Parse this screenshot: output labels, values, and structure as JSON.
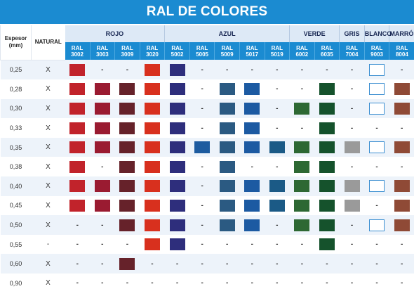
{
  "title": "RAL DE COLORES",
  "headers": {
    "espesor": "Espesor (mm)",
    "natural": "NATURAL",
    "groups": [
      {
        "name": "ROJO",
        "span": 4
      },
      {
        "name": "AZUL",
        "span": 5
      },
      {
        "name": "VERDE",
        "span": 2
      },
      {
        "name": "GRIS",
        "span": 1
      },
      {
        "name": "BLANCO",
        "span": 1
      },
      {
        "name": "MARRÓN",
        "span": 1
      }
    ],
    "ral_label": "RAL",
    "codes": [
      "3002",
      "3003",
      "3009",
      "3020",
      "5002",
      "5005",
      "5009",
      "5017",
      "5019",
      "6002",
      "6035",
      "7004",
      "9003",
      "8004"
    ]
  },
  "colors": {
    "3002": "#c1232b",
    "3003": "#9a1b31",
    "3009": "#66222a",
    "3020": "#d8301e",
    "5002": "#2e2e7c",
    "5005": "#1d5b9f",
    "5009": "#2b5a82",
    "5017": "#1c5aa2",
    "5019": "#1b5a86",
    "6002": "#2d6833",
    "6035": "#15522c",
    "7004": "#9a9a9a",
    "9003": "#ffffff",
    "8004": "#8f4a36"
  },
  "dash": "-",
  "rows": [
    {
      "esp": "0,25",
      "nat": "X",
      "cells": [
        1,
        0,
        0,
        1,
        1,
        0,
        0,
        0,
        0,
        0,
        0,
        0,
        1,
        0
      ]
    },
    {
      "esp": "0,28",
      "nat": "X",
      "cells": [
        1,
        1,
        1,
        1,
        1,
        0,
        1,
        1,
        0,
        0,
        1,
        0,
        1,
        1
      ]
    },
    {
      "esp": "0,30",
      "nat": "X",
      "cells": [
        1,
        1,
        1,
        1,
        1,
        0,
        1,
        1,
        0,
        1,
        1,
        0,
        1,
        1
      ]
    },
    {
      "esp": "0,33",
      "nat": "X",
      "cells": [
        1,
        1,
        1,
        1,
        1,
        0,
        1,
        1,
        0,
        0,
        1,
        0,
        0,
        0
      ]
    },
    {
      "esp": "0,35",
      "nat": "X",
      "cells": [
        1,
        1,
        1,
        1,
        1,
        1,
        1,
        1,
        1,
        1,
        1,
        1,
        1,
        1
      ]
    },
    {
      "esp": "0,38",
      "nat": "X",
      "cells": [
        1,
        0,
        1,
        1,
        1,
        0,
        1,
        0,
        0,
        1,
        1,
        0,
        0,
        0
      ]
    },
    {
      "esp": "0,40",
      "nat": "X",
      "cells": [
        1,
        1,
        1,
        1,
        1,
        0,
        1,
        1,
        1,
        1,
        1,
        1,
        1,
        1
      ]
    },
    {
      "esp": "0,45",
      "nat": "X",
      "cells": [
        1,
        1,
        1,
        1,
        1,
        0,
        1,
        1,
        1,
        1,
        1,
        1,
        0,
        1
      ]
    },
    {
      "esp": "0,50",
      "nat": "X",
      "cells": [
        0,
        0,
        1,
        1,
        1,
        0,
        1,
        1,
        0,
        1,
        1,
        0,
        1,
        1
      ]
    },
    {
      "esp": "0,55",
      "nat": "-",
      "cells": [
        0,
        0,
        0,
        1,
        1,
        0,
        0,
        0,
        0,
        0,
        1,
        0,
        0,
        0
      ]
    },
    {
      "esp": "0,60",
      "nat": "X",
      "cells": [
        0,
        0,
        1,
        0,
        0,
        0,
        0,
        0,
        0,
        0,
        0,
        0,
        0,
        0
      ]
    },
    {
      "esp": "0,90",
      "nat": "X",
      "cells": [
        0,
        0,
        0,
        0,
        0,
        0,
        0,
        0,
        0,
        0,
        0,
        0,
        0,
        0
      ]
    }
  ]
}
